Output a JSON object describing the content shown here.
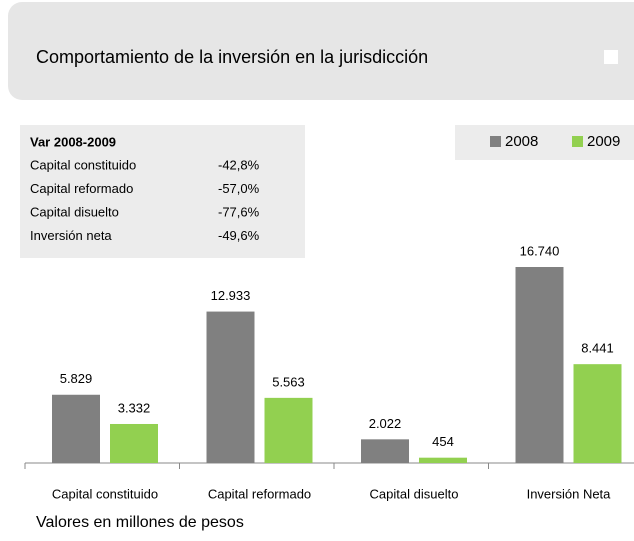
{
  "title": "Comportamiento de la inversión en la jurisdicción",
  "variation": {
    "title": "Var 2008-2009",
    "rows": [
      {
        "label": "Capital constituido",
        "value": "-42,8%"
      },
      {
        "label": "Capital reformado",
        "value": "-57,0%"
      },
      {
        "label": "Capital disuelto",
        "value": "-77,6%"
      },
      {
        "label": "Inversión neta",
        "value": "-49,6%"
      }
    ]
  },
  "chart_data": {
    "type": "bar",
    "categories": [
      "Capital constituido",
      "Capital reformado",
      "Capital disuelto",
      "Inversión Neta"
    ],
    "series": [
      {
        "name": "2008",
        "color": "#808080",
        "values": [
          5829,
          12933,
          2022,
          16740
        ],
        "value_labels": [
          "5.829",
          "12.933",
          "2.022",
          "16.740"
        ]
      },
      {
        "name": "2009",
        "color": "#92d050",
        "values": [
          3332,
          5563,
          454,
          8441
        ],
        "value_labels": [
          "3.332",
          "5.563",
          "454",
          "8.441"
        ]
      }
    ]
  },
  "footnote": "Valores en millones de pesos"
}
